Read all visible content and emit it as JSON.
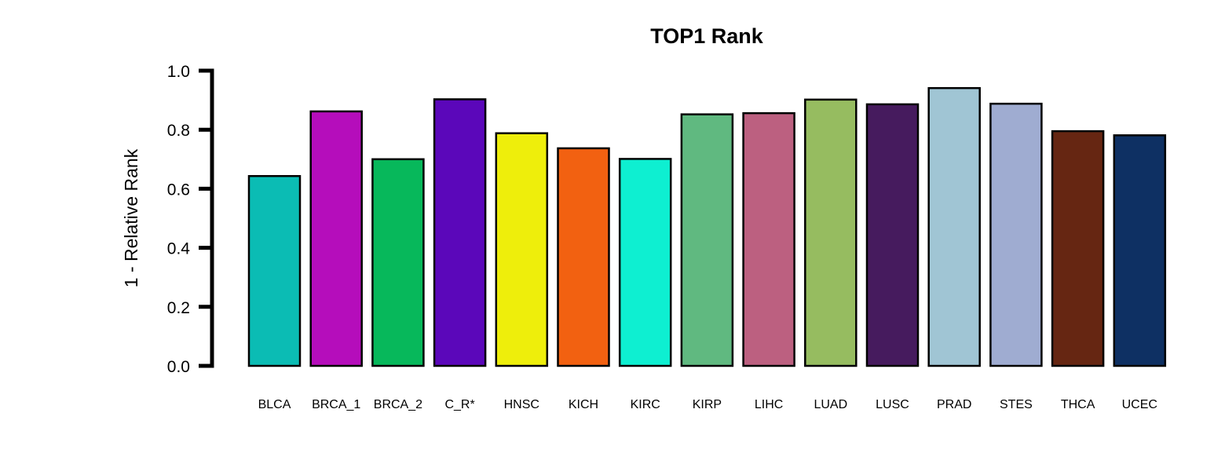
{
  "chart_data": {
    "type": "bar",
    "title": "TOP1 Rank",
    "xlabel": "",
    "ylabel": "1 - Relative Rank",
    "ylim": [
      0,
      1
    ],
    "yticks": [
      "0.0",
      "0.2",
      "0.4",
      "0.6",
      "0.8",
      "1.0"
    ],
    "categories": [
      "BLCA",
      "BRCA_1",
      "BRCA_2",
      "C_R*",
      "HNSC",
      "KICH",
      "KIRC",
      "KIRP",
      "LIHC",
      "LUAD",
      "LUSC",
      "PRAD",
      "STES",
      "THCA",
      "UCEC"
    ],
    "values": [
      0.643,
      0.862,
      0.7,
      0.903,
      0.788,
      0.737,
      0.701,
      0.852,
      0.856,
      0.902,
      0.886,
      0.941,
      0.888,
      0.795,
      0.781
    ],
    "colors": [
      "#0BBCB4",
      "#B50DBB",
      "#07B85B",
      "#5B07BA",
      "#EEEE0B",
      "#F26111",
      "#0EEFD1",
      "#60B980",
      "#BC6080",
      "#96BC60",
      "#461B5E",
      "#A0C5D4",
      "#9FACD1",
      "#662612",
      "#0E3063"
    ],
    "grid": false,
    "legend": "none"
  }
}
